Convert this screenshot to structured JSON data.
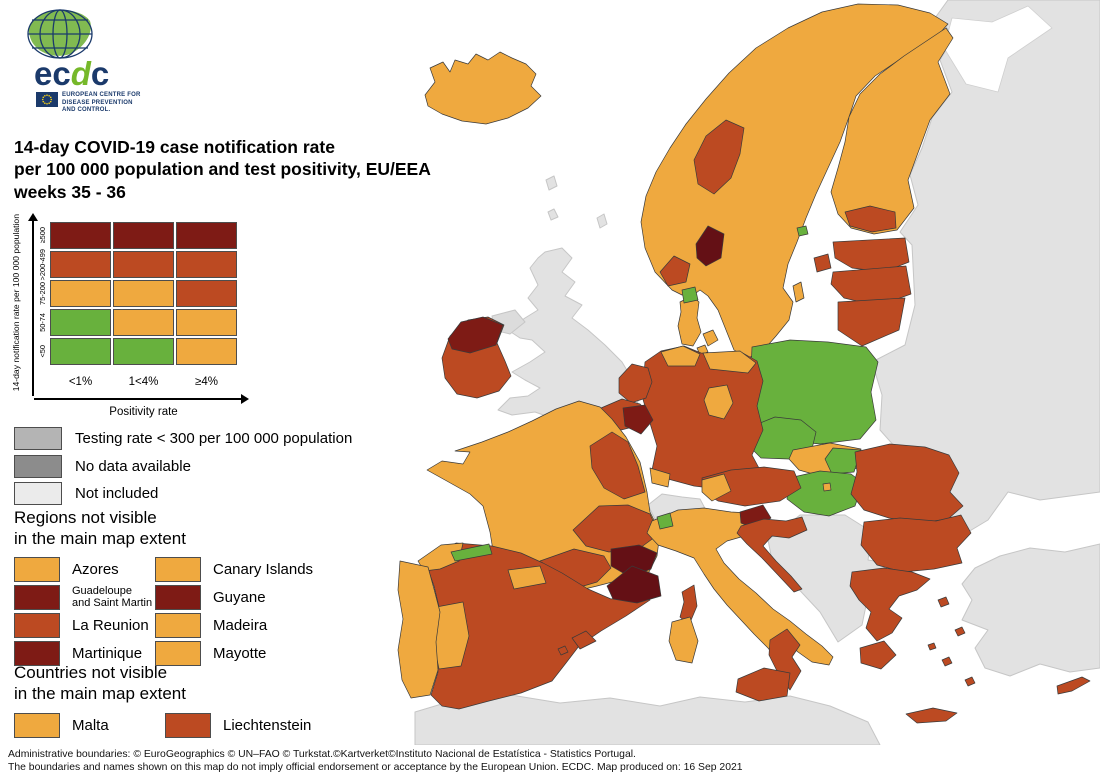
{
  "logo": {
    "brand": "ecdc",
    "org_lines": [
      "EUROPEAN CENTRE FOR",
      "DISEASE PREVENTION",
      "AND CONTROL."
    ]
  },
  "title": {
    "line1": "14-day COVID-19 case notification rate",
    "line2": "per 100 000 population and test positivity, EU/EEA",
    "line3": "weeks 35 - 36"
  },
  "colors": {
    "green": "#68b13d",
    "orange": "#efa93f",
    "red": "#bc4a22",
    "darkred": "#7e1b15",
    "darkest": "#641015",
    "testing_gray": "#b4b4b4",
    "nodata_gray": "#8c8c8c",
    "notincluded_gray": "#ebebeb",
    "land": "#e2e2e2",
    "land_dark": "#dcdcdc",
    "sea": "#ffffff",
    "navy": "#1b3a6b",
    "logo_green": "#76b82a"
  },
  "matrix_legend": {
    "y_axis_label": "14-day notification rate per 100 000 population",
    "x_axis_label": "Positivity rate",
    "row_labels": [
      "≥500",
      ">200-499",
      "75-200",
      "50-74",
      "<50"
    ],
    "col_labels": [
      "<1%",
      "1<4%",
      "≥4%"
    ],
    "cells": [
      [
        "darkred",
        "darkred",
        "darkred"
      ],
      [
        "red",
        "red",
        "red"
      ],
      [
        "orange",
        "orange",
        "red"
      ],
      [
        "green",
        "orange",
        "orange"
      ],
      [
        "green",
        "green",
        "orange"
      ]
    ]
  },
  "status_legend": [
    {
      "label": "Testing rate < 300 per 100 000 population",
      "color": "testing_gray"
    },
    {
      "label": "No data available",
      "color": "nodata_gray"
    },
    {
      "label": "Not included",
      "color": "notincluded_gray"
    }
  ],
  "regions_section": {
    "heading_line1": "Regions not visible",
    "heading_line2": "in the main map extent",
    "items": [
      {
        "label": "Azores",
        "color": "orange"
      },
      {
        "label": "Canary Islands",
        "color": "orange"
      },
      {
        "label": "Guadeloupe\nand Saint Martin",
        "color": "darkred",
        "small": true
      },
      {
        "label": "Guyane",
        "color": "darkred"
      },
      {
        "label": "La Reunion",
        "color": "red"
      },
      {
        "label": "Madeira",
        "color": "orange"
      },
      {
        "label": "Martinique",
        "color": "darkred"
      },
      {
        "label": "Mayotte",
        "color": "orange"
      }
    ]
  },
  "countries_section": {
    "heading_line1": "Countries not visible",
    "heading_line2": "in the main map extent",
    "items": [
      {
        "label": "Malta",
        "color": "orange"
      },
      {
        "label": "Liechtenstein",
        "color": "red"
      }
    ]
  },
  "footer": {
    "line1": "Administrative boundaries: © EuroGeographics © UN–FAO © Turkstat.©Kartverket©Instituto Nacional de Estatística - Statistics Portugal.",
    "line2": "The boundaries and names shown on this map do not imply official endorsement or acceptance by the European Union. ECDC. Map produced on: 16 Sep 2021"
  },
  "map": {
    "regions": {
      "north_africa": "land",
      "turkey": "land",
      "russia_east": "land",
      "white_sea": "sea",
      "balkans_non_eu": "land",
      "great_britain": "land",
      "northern_ireland": "land_dark",
      "switzerland": "land",
      "kaliningrad": "land",
      "faroe_shetland": "land",
      "iceland": "orange",
      "scandinavia": "orange",
      "trondelag": "red",
      "oslo": "darkest",
      "agder": "red",
      "finland": "orange",
      "uusimaa": "red",
      "aland": "green",
      "gotland": "orange",
      "denmark": "orange",
      "north_jutland": "green",
      "denmark_islands": "orange",
      "estonia": "red",
      "saaremaa": "red",
      "latvia": "red",
      "lithuania": "red",
      "poland": "green",
      "czechia": "green",
      "slovakia": "orange",
      "slovakia_east": "green",
      "hungary": "green",
      "budapest": "orange",
      "germany": "red",
      "schleswig_holstein": "orange",
      "mecklenburg": "orange",
      "saxony_anhalt": "orange",
      "swabia": "orange",
      "netherlands": "red",
      "belgium": "red",
      "wallonia_luxembourg": "darkred",
      "france": "orange",
      "grand_est_bourgogne": "red",
      "auvergne_rhone_alpes": "red",
      "occitanie": "red",
      "provence": "darkest",
      "corsica": "red",
      "ireland": "red",
      "ireland_northwest": "darkred",
      "spain": "red",
      "galicia": "orange",
      "asturias": "green",
      "navarra_rioja": "orange",
      "extremadura": "orange",
      "catalonia": "darkest",
      "balearics": "red",
      "portugal": "orange",
      "italy": "orange",
      "trentino": "green",
      "south_italy": "red",
      "sicily": "red",
      "sardinia": "orange",
      "austria": "red",
      "tyrol": "orange",
      "slovenia": "darkred",
      "croatia": "red",
      "romania": "red",
      "bulgaria": "red",
      "greece": "red",
      "crete": "red",
      "aegean_islands": "red",
      "cyprus": "red"
    }
  }
}
